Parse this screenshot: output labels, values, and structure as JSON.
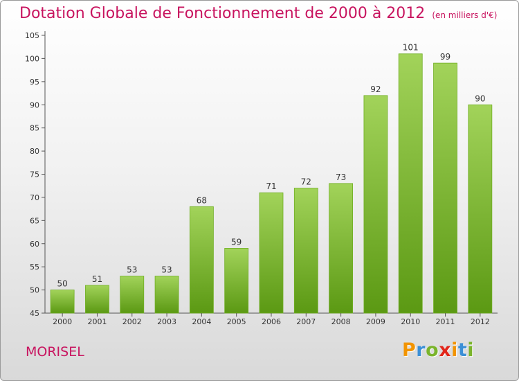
{
  "header": {
    "title": "Dotation Globale de Fonctionnement de 2000 à 2012",
    "unit": "(en milliers d'€)"
  },
  "footer": {
    "town": "MORISEL",
    "logo_text": "Proxiti"
  },
  "colors": {
    "title": "#c8145f",
    "bar_light": "#a2d35a",
    "bar_dark": "#5b9913",
    "axis": "#333333"
  },
  "chart_data": {
    "type": "bar",
    "title": "Dotation Globale de Fonctionnement de 2000 à 2012",
    "subtitle": "(en milliers d'€)",
    "xlabel": "",
    "ylabel": "",
    "categories": [
      "2000",
      "2001",
      "2002",
      "2003",
      "2004",
      "2005",
      "2006",
      "2007",
      "2008",
      "2009",
      "2010",
      "2011",
      "2012"
    ],
    "values": [
      50,
      51,
      53,
      53,
      68,
      59,
      71,
      72,
      73,
      92,
      101,
      99,
      90
    ],
    "ylim": [
      45,
      105
    ],
    "yticks": [
      45,
      50,
      55,
      60,
      65,
      70,
      75,
      80,
      85,
      90,
      95,
      100,
      105
    ],
    "grid": false,
    "data_labels": true
  }
}
